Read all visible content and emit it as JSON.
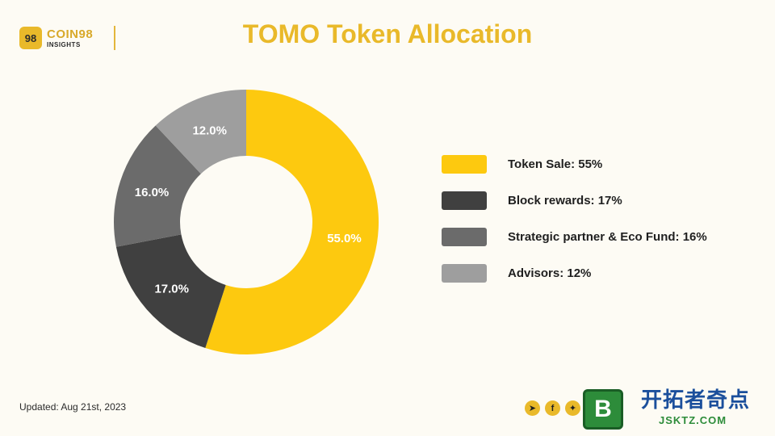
{
  "header": {
    "logo_mark": "98",
    "logo_name": "COIN98",
    "logo_sub": "INSIGHTS",
    "title": "TOMO Token Allocation"
  },
  "chart_data": {
    "type": "pie",
    "donut": true,
    "title": "TOMO Token Allocation",
    "slices": [
      {
        "label": "Token Sale: 55%",
        "value": 55.0,
        "display": "55.0%",
        "color": "#fdc90f"
      },
      {
        "label": "Block rewards: 17%",
        "value": 17.0,
        "display": "17.0%",
        "color": "#404040"
      },
      {
        "label": "Strategic partner & Eco Fund: 16%",
        "value": 16.0,
        "display": "16.0%",
        "color": "#6b6b6b"
      },
      {
        "label": "Advisors: 12%",
        "value": 12.0,
        "display": "12.0%",
        "color": "#9e9e9e"
      }
    ],
    "legend_position": "right"
  },
  "footer": {
    "updated": "Updated: Aug 21st, 2023",
    "social_icons": [
      "telegram-icon",
      "facebook-icon",
      "twitter-icon"
    ],
    "brand_mark": "B",
    "brand_name": "开拓者奇点",
    "brand_url": "JSKTZ.COM"
  }
}
